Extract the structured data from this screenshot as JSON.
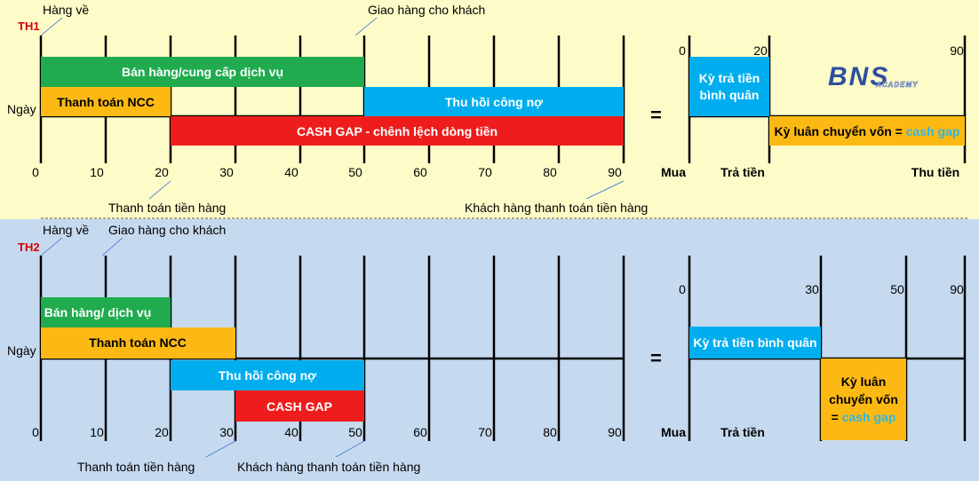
{
  "colors": {
    "bg_top": "#fdfcc8",
    "bg_bottom": "#c5d9ef",
    "green": "#1fab4e",
    "orange": "#fdb913",
    "blue": "#00aeef",
    "red": "#ee1c1c",
    "pointer": "#5b8bd4",
    "logo": "#2e4f9e",
    "highlight": "#2fb7e0"
  },
  "logo": {
    "text": "BNS",
    "sub": "ACADEMY"
  },
  "th1": {
    "case_label": "TH1",
    "axis_label": "Ngày",
    "ticks": [
      "0",
      "10",
      "20",
      "30",
      "40",
      "50",
      "60",
      "70",
      "80",
      "90"
    ],
    "bars": {
      "sales": "Bán hàng/cung cấp dịch vụ",
      "pay_supplier": "Thanh toán NCC",
      "collection": "Thu hồi công nợ",
      "cash_gap": "CASH GAP - chênh lệch dòng tiền"
    },
    "annotations": {
      "goods_arrive": "Hàng về",
      "deliver": "Giao hàng cho khách",
      "pay_goods": "Thanh toán tiền hàng",
      "customer_pays": "Khách hàng thanh toán tiền hàng"
    },
    "equals": "=",
    "right": {
      "ticks": [
        "0",
        "20",
        "90"
      ],
      "avg_payment_line1": "Kỳ trả tiền",
      "avg_payment_line2": "bình quân",
      "cycle_prefix": "Kỳ luân chuyển vốn = ",
      "cycle_highlight": "cash gap",
      "bottom_buy": "Mua",
      "bottom_pay": "Trả tiền",
      "bottom_collect": "Thu tiền"
    }
  },
  "th2": {
    "case_label": "TH2",
    "axis_label": "Ngày",
    "ticks": [
      "0",
      "10",
      "20",
      "30",
      "40",
      "50",
      "60",
      "70",
      "80",
      "90"
    ],
    "bars": {
      "sales": "Bán hàng/ dịch vụ",
      "pay_supplier": "Thanh toán NCC",
      "collection": "Thu hồi công nợ",
      "cash_gap": "CASH GAP"
    },
    "annotations": {
      "goods_arrive": "Hàng về",
      "deliver": "Giao hàng cho khách",
      "pay_goods": "Thanh toán tiền hàng",
      "customer_pays": "Khách hàng thanh toán tiền hàng"
    },
    "equals": "=",
    "right": {
      "ticks": [
        "0",
        "30",
        "50",
        "90"
      ],
      "avg_payment": "Kỳ trả tiền bình quân",
      "cycle_line1": "Kỳ luân",
      "cycle_line2": "chuyển vốn",
      "cycle_line3_prefix": "= ",
      "cycle_highlight": "cash gap",
      "bottom_buy": "Mua",
      "bottom_pay": "Trả tiền"
    }
  }
}
